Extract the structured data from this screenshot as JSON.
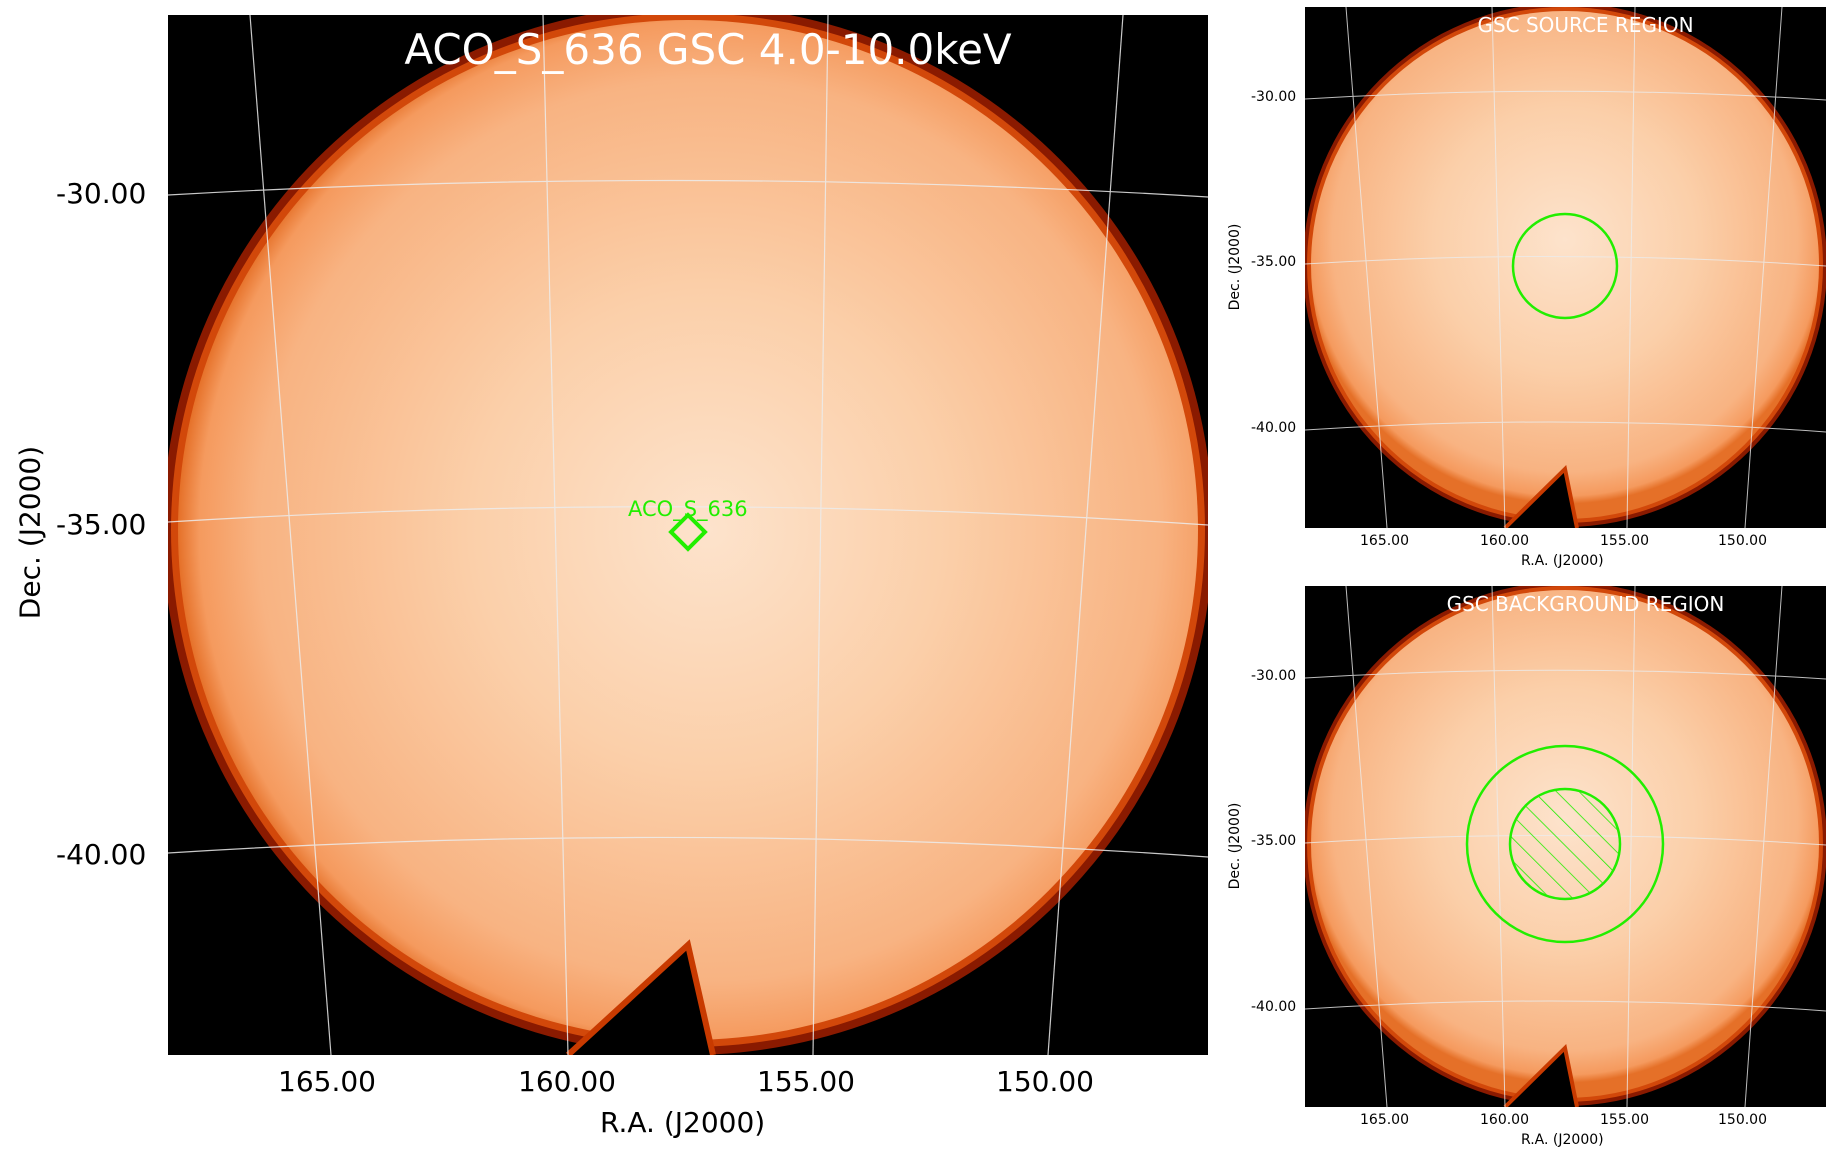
{
  "main": {
    "title": "ACO_S_636 GSC 4.0-10.0keV",
    "source_label": "ACO_S_636",
    "ra_ticks": [
      "165.00",
      "160.00",
      "155.00",
      "150.00"
    ],
    "dec_ticks": [
      "-30.00",
      "-35.00",
      "-40.00"
    ],
    "xlabel": "R.A. (J2000)",
    "ylabel": "Dec. (J2000)"
  },
  "source_region": {
    "title": "GSC SOURCE REGION",
    "ra_ticks": [
      "165.00",
      "160.00",
      "155.00",
      "150.00"
    ],
    "dec_ticks": [
      "-30.00",
      "-35.00",
      "-40.00"
    ],
    "xlabel": "R.A. (J2000)",
    "ylabel": "Dec. (J2000)"
  },
  "background_region": {
    "title": "GSC BACKGROUND REGION",
    "ra_ticks": [
      "165.00",
      "160.00",
      "155.00",
      "150.00"
    ],
    "dec_ticks": [
      "-30.00",
      "-35.00",
      "-40.00"
    ],
    "xlabel": "R.A. (J2000)",
    "ylabel": "Dec. (J2000)"
  },
  "colors": {
    "region": "#22ee00",
    "image_center": "#fde3cc",
    "image_mid": "#f9b98a",
    "image_edge": "#f59a5e",
    "rim": "#c83a00",
    "background": "#000000",
    "grid": "#e8e8e8"
  }
}
